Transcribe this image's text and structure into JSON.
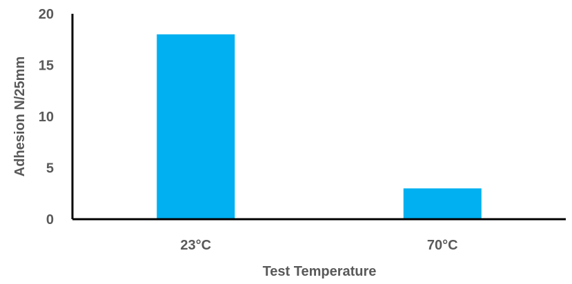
{
  "chart_data": {
    "type": "bar",
    "title": "",
    "xlabel": "Test Temperature",
    "ylabel": "Adhesion N/25mm",
    "categories": [
      "23°C",
      "70°C"
    ],
    "values": [
      18,
      3
    ],
    "ylim": [
      0,
      20
    ],
    "yticks": [
      "0",
      "5",
      "10",
      "15",
      "20"
    ],
    "grid": false,
    "legend": "none",
    "bar_color": "#00B0F0",
    "text_color": "#595959",
    "axis_color": "#000000"
  }
}
